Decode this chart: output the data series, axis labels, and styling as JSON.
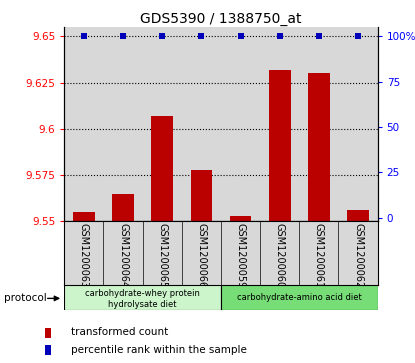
{
  "title": "GDS5390 / 1388750_at",
  "samples": [
    "GSM1200063",
    "GSM1200064",
    "GSM1200065",
    "GSM1200066",
    "GSM1200059",
    "GSM1200060",
    "GSM1200061",
    "GSM1200062"
  ],
  "red_values": [
    9.555,
    9.565,
    9.607,
    9.578,
    9.553,
    9.632,
    9.63,
    9.556
  ],
  "blue_values": [
    100,
    100,
    100,
    100,
    100,
    100,
    100,
    100
  ],
  "ylim_left": [
    9.55,
    9.655
  ],
  "ylim_right": [
    -2,
    105
  ],
  "yticks_left": [
    9.55,
    9.575,
    9.6,
    9.625,
    9.65
  ],
  "ytick_labels_left": [
    "9.55",
    "9.575",
    "9.6",
    "9.625",
    "9.65"
  ],
  "yticks_right": [
    0,
    25,
    50,
    75,
    100
  ],
  "ytick_labels_right": [
    "0",
    "25",
    "50",
    "75",
    "100%"
  ],
  "bar_color": "#bb0000",
  "dot_color": "#0000bb",
  "col_bg": "#d8d8d8",
  "plot_bg": "white",
  "proto1_color": "#ccf5cc",
  "proto2_color": "#77dd77",
  "proto1_label1": "carbohydrate-whey protein",
  "proto1_label2": "hydrolysate diet",
  "proto2_label": "carbohydrate-amino acid diet",
  "legend_red_label": "transformed count",
  "legend_blue_label": "percentile rank within the sample",
  "protocol_text": "protocol",
  "bar_width": 0.55
}
